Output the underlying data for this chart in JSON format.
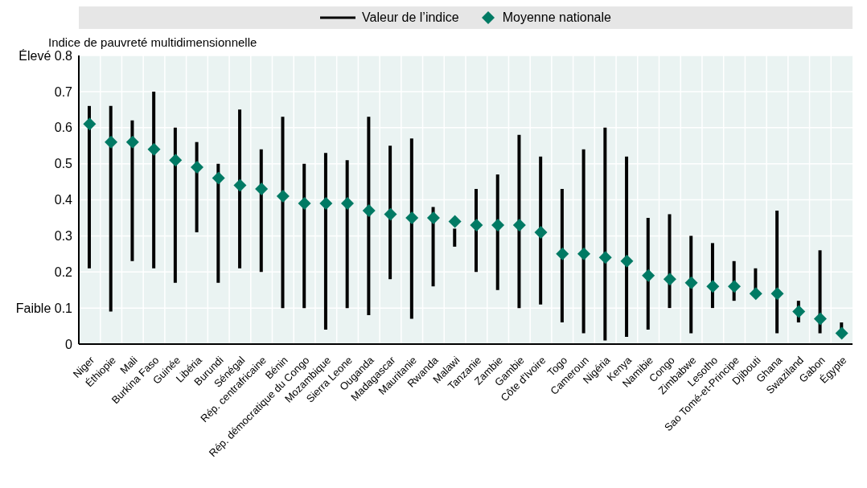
{
  "chart_data": {
    "type": "bar",
    "ylabel": "Indice de pauvreté multidimensionnelle",
    "categories": [
      "Niger",
      "Éthiopie",
      "Mali",
      "Burkina Faso",
      "Guinée",
      "Libéria",
      "Burundi",
      "Sénégal",
      "Rép. centrafricaine",
      "Bénin",
      "Rép. démocratique du Congo",
      "Mozambique",
      "Sierra Leone",
      "Ouganda",
      "Madagascar",
      "Mauritanie",
      "Rwanda",
      "Malawi",
      "Tanzanie",
      "Zambie",
      "Gambie",
      "Côte d'Ivoire",
      "Togo",
      "Cameroun",
      "Nigéria",
      "Kenya",
      "Namibie",
      "Congo",
      "Zimbabwe",
      "Lesotho",
      "Sao Tomé-et-Principe",
      "Djibouti",
      "Ghana",
      "Swaziland",
      "Gabon",
      "Égypte"
    ],
    "series": [
      {
        "name": "Valeur de l’indice",
        "color": "#000000",
        "base": [
          0.21,
          0.09,
          0.23,
          0.21,
          0.17,
          0.31,
          0.17,
          0.21,
          0.2,
          0.1,
          0.1,
          0.04,
          0.1,
          0.08,
          0.18,
          0.07,
          0.16,
          0.27,
          0.2,
          0.15,
          0.1,
          0.11,
          0.06,
          0.03,
          0.01,
          0.02,
          0.04,
          0.1,
          0.03,
          0.1,
          0.12,
          0.13,
          0.03,
          0.06,
          0.03,
          0.02
        ],
        "values": [
          0.45,
          0.57,
          0.39,
          0.49,
          0.43,
          0.25,
          0.33,
          0.44,
          0.34,
          0.53,
          0.4,
          0.49,
          0.41,
          0.55,
          0.37,
          0.5,
          0.22,
          0.05,
          0.23,
          0.32,
          0.48,
          0.41,
          0.37,
          0.51,
          0.59,
          0.5,
          0.31,
          0.26,
          0.27,
          0.18,
          0.11,
          0.08,
          0.34,
          0.06,
          0.23,
          0.04
        ]
      },
      {
        "name": "Moyenne nationale",
        "type": "scatter",
        "color": "#007a64",
        "values": [
          0.61,
          0.56,
          0.56,
          0.54,
          0.51,
          0.49,
          0.46,
          0.44,
          0.43,
          0.41,
          0.39,
          0.39,
          0.39,
          0.37,
          0.36,
          0.35,
          0.35,
          0.34,
          0.33,
          0.33,
          0.33,
          0.31,
          0.25,
          0.25,
          0.24,
          0.23,
          0.19,
          0.18,
          0.17,
          0.16,
          0.16,
          0.14,
          0.14,
          0.09,
          0.07,
          0.03
        ]
      }
    ],
    "marker": "diamond",
    "ylim": [
      0,
      0.8
    ],
    "yticks": [
      0,
      {
        "value": 0.1,
        "label": "Faible 0.1"
      },
      0.2,
      0.3,
      0.4,
      0.5,
      0.6,
      0.7,
      {
        "value": 0.8,
        "label": "Élevé 0.8"
      }
    ],
    "grid": true,
    "legend": "top"
  }
}
